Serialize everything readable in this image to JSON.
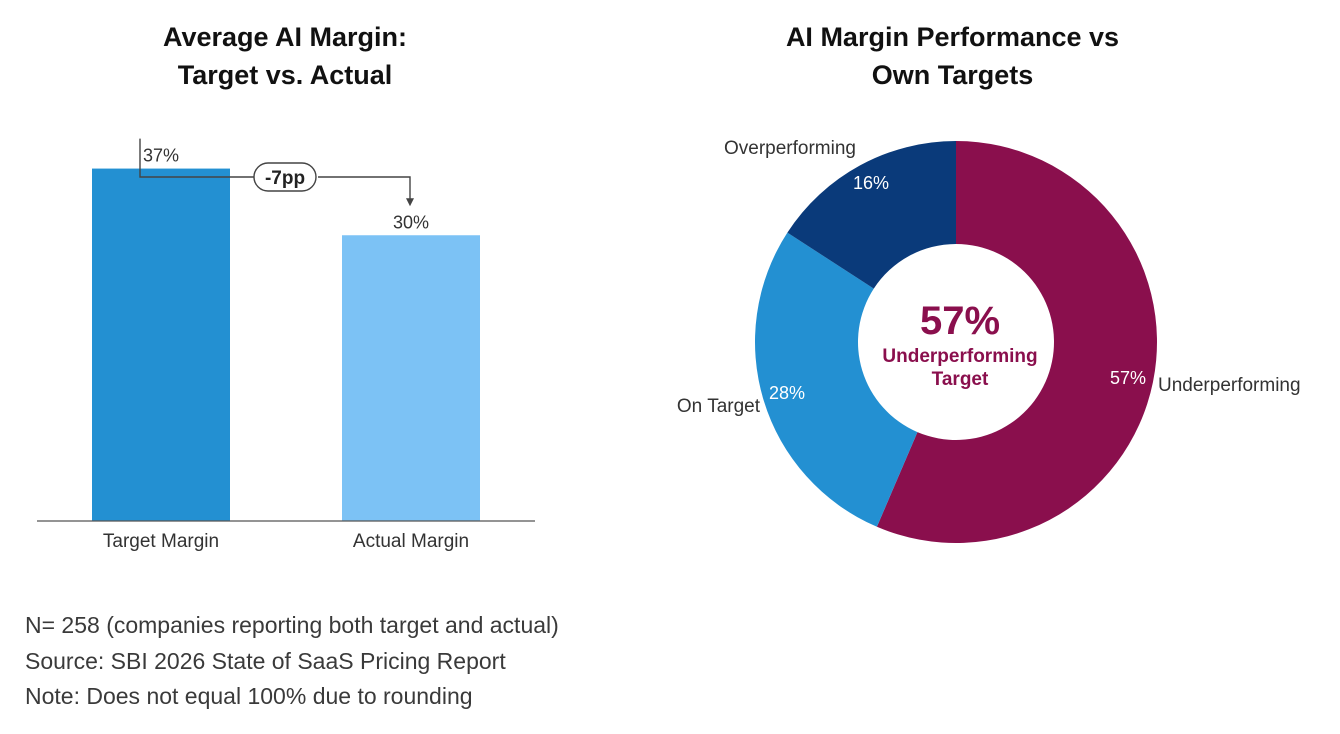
{
  "chart_data": [
    {
      "type": "bar",
      "title": [
        "Average AI Margin:",
        "Target vs. Actual"
      ],
      "categories": [
        "Target Margin",
        "Actual Margin"
      ],
      "values": [
        37,
        30
      ],
      "value_labels": [
        "37%",
        "30%"
      ],
      "colors": [
        "#2390d2",
        "#7cc2f5"
      ],
      "annotation": "-7pp",
      "ylim": [
        0,
        40
      ]
    },
    {
      "type": "pie",
      "variant": "donut",
      "title": [
        "AI Margin Performance vs",
        "Own Targets"
      ],
      "slices": [
        {
          "label": "Underperforming",
          "value": 57,
          "value_label": "57%",
          "color": "#8a0f4d"
        },
        {
          "label": "On Target",
          "value": 28,
          "value_label": "28%",
          "color": "#2390d2"
        },
        {
          "label": "Overperforming",
          "value": 16,
          "value_label": "16%",
          "color": "#0a3a7a"
        }
      ],
      "center_value": "57%",
      "center_label": [
        "Underperforming",
        "Target"
      ],
      "center_color": "#8a0f4d"
    }
  ],
  "notes": [
    "N= 258 (companies reporting both target and actual)",
    "Source: SBI 2026 State of SaaS Pricing Report",
    "Note: Does not equal 100% due to rounding"
  ]
}
